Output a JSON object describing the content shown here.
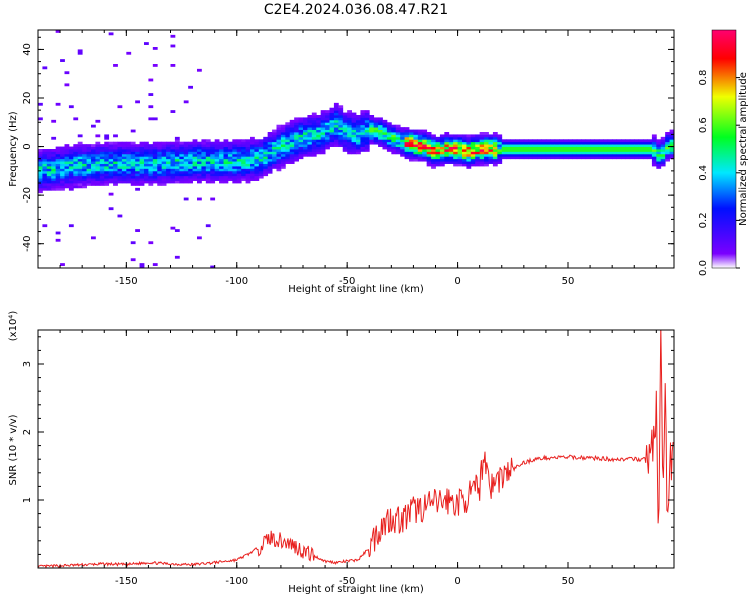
{
  "title": "C2E4.2024.036.08.47.R21",
  "chart_data": [
    {
      "type": "heatmap",
      "xlabel": "Height of straight line (km)",
      "ylabel": "Frequency (Hz)",
      "xlim": [
        -190,
        98
      ],
      "ylim": [
        -50,
        48
      ],
      "xticks": [
        -150,
        -100,
        -50,
        0,
        50
      ],
      "yticks": [
        -40,
        -20,
        0,
        20,
        40
      ],
      "colorbar": {
        "label": "Normalized spectral amplitude",
        "range": [
          0,
          1
        ],
        "ticks": [
          0.0,
          0.2,
          0.4,
          0.6,
          0.8
        ],
        "colormap": [
          "#ffffff",
          "#7a00ff",
          "#0010ff",
          "#00e8ff",
          "#00ff20",
          "#f0ff00",
          "#ff0000",
          "#ff0070"
        ]
      },
      "ridge": {
        "x": [
          -190,
          -175,
          -160,
          -140,
          -120,
          -100,
          -90,
          -80,
          -70,
          -60,
          -55,
          -50,
          -45,
          -40,
          -35,
          -30,
          -25,
          -20,
          -15,
          -10,
          -5,
          0,
          5,
          10,
          20,
          40,
          60,
          80,
          88,
          92,
          95,
          98
        ],
        "y": [
          -10,
          -8,
          -7,
          -7,
          -6,
          -6,
          -5,
          0,
          4,
          6,
          9,
          6,
          5,
          7,
          6,
          4,
          2,
          1,
          0,
          -2,
          -1,
          -1,
          -2,
          -1,
          -1,
          -1,
          -1,
          -1,
          -1,
          -4,
          0,
          1
        ]
      }
    },
    {
      "type": "line",
      "xlabel": "Height of straight line (km)",
      "ylabel": "SNR (10 * v/v)",
      "y_multiplier": "(x10⁴)",
      "xlim": [
        -190,
        98
      ],
      "ylim": [
        0,
        3.5
      ],
      "xticks": [
        -150,
        -100,
        -50,
        0,
        50
      ],
      "yticks": [
        1,
        2,
        3
      ],
      "series": [
        {
          "color": "#e8201e",
          "x": [
            -190,
            -175,
            -160,
            -150,
            -140,
            -130,
            -120,
            -110,
            -100,
            -95,
            -90,
            -85,
            -80,
            -75,
            -70,
            -65,
            -60,
            -55,
            -50,
            -45,
            -40,
            -35,
            -30,
            -25,
            -20,
            -15,
            -10,
            -5,
            0,
            5,
            10,
            12,
            15,
            20,
            25,
            30,
            35,
            40,
            50,
            60,
            70,
            80,
            85,
            88,
            90,
            91,
            92,
            93,
            94,
            95,
            96,
            98
          ],
          "y": [
            0.02,
            0.04,
            0.06,
            0.05,
            0.08,
            0.06,
            0.05,
            0.08,
            0.12,
            0.2,
            0.3,
            0.45,
            0.4,
            0.35,
            0.25,
            0.18,
            0.1,
            0.08,
            0.1,
            0.12,
            0.3,
            0.6,
            0.75,
            0.7,
            0.85,
            0.9,
            0.95,
            1.0,
            0.95,
            1.05,
            1.2,
            1.7,
            1.2,
            1.35,
            1.45,
            1.55,
            1.6,
            1.62,
            1.63,
            1.62,
            1.6,
            1.6,
            1.6,
            1.75,
            2.3,
            0.3,
            3.4,
            1.0,
            2.6,
            0.7,
            1.5,
            1.55
          ]
        }
      ]
    }
  ]
}
